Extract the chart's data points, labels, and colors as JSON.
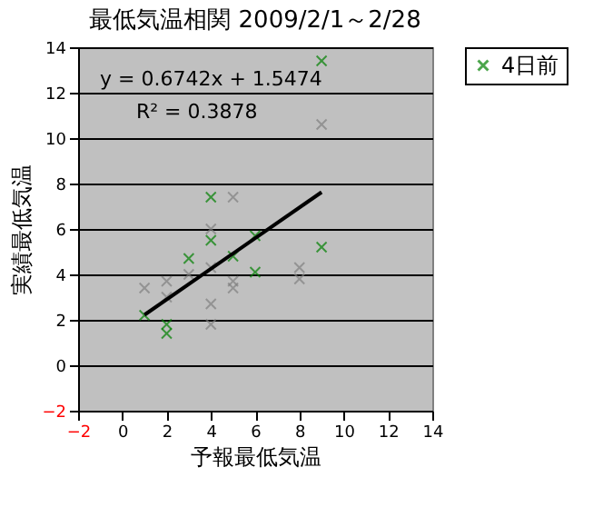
{
  "chart_data": {
    "type": "scatter",
    "title": "最低気温相関  2009/2/1～2/28",
    "xlabel": "予報最低気温",
    "ylabel": "実績最低気温",
    "xlim": [
      -2,
      14
    ],
    "xticks": [
      -2,
      0,
      2,
      4,
      6,
      8,
      10,
      12,
      14
    ],
    "ylim": [
      -2,
      14
    ],
    "yticks": [
      -2,
      0,
      2,
      4,
      6,
      8,
      10,
      12,
      14
    ],
    "grid": "y",
    "legend": "right",
    "marker": "cross",
    "series": [
      {
        "name": "4日前",
        "color": "#008000",
        "x": [
          1,
          2,
          2,
          3,
          4,
          4,
          5,
          6,
          6,
          9,
          9
        ],
        "values": [
          2.2,
          1.4,
          1.8,
          4.7,
          7.4,
          5.5,
          4.8,
          4.1,
          5.7,
          13.4,
          5.2
        ]
      },
      {
        "color": "#808080",
        "x": [
          1,
          2,
          2,
          3,
          4,
          4,
          4,
          4,
          5,
          5,
          5,
          8,
          8,
          9
        ],
        "values": [
          3.4,
          3.7,
          3.0,
          4.0,
          6.0,
          4.3,
          2.7,
          1.8,
          7.4,
          3.7,
          3.4,
          4.3,
          3.8,
          10.6
        ]
      },
      {
        "type": "line",
        "color": "#000000",
        "marker": "none",
        "x": [
          1,
          9
        ],
        "values": [
          2.22,
          7.62
        ]
      }
    ],
    "annotations": [
      "y = 0.6742x + 1.5474",
      "R² = 0.3878"
    ]
  }
}
